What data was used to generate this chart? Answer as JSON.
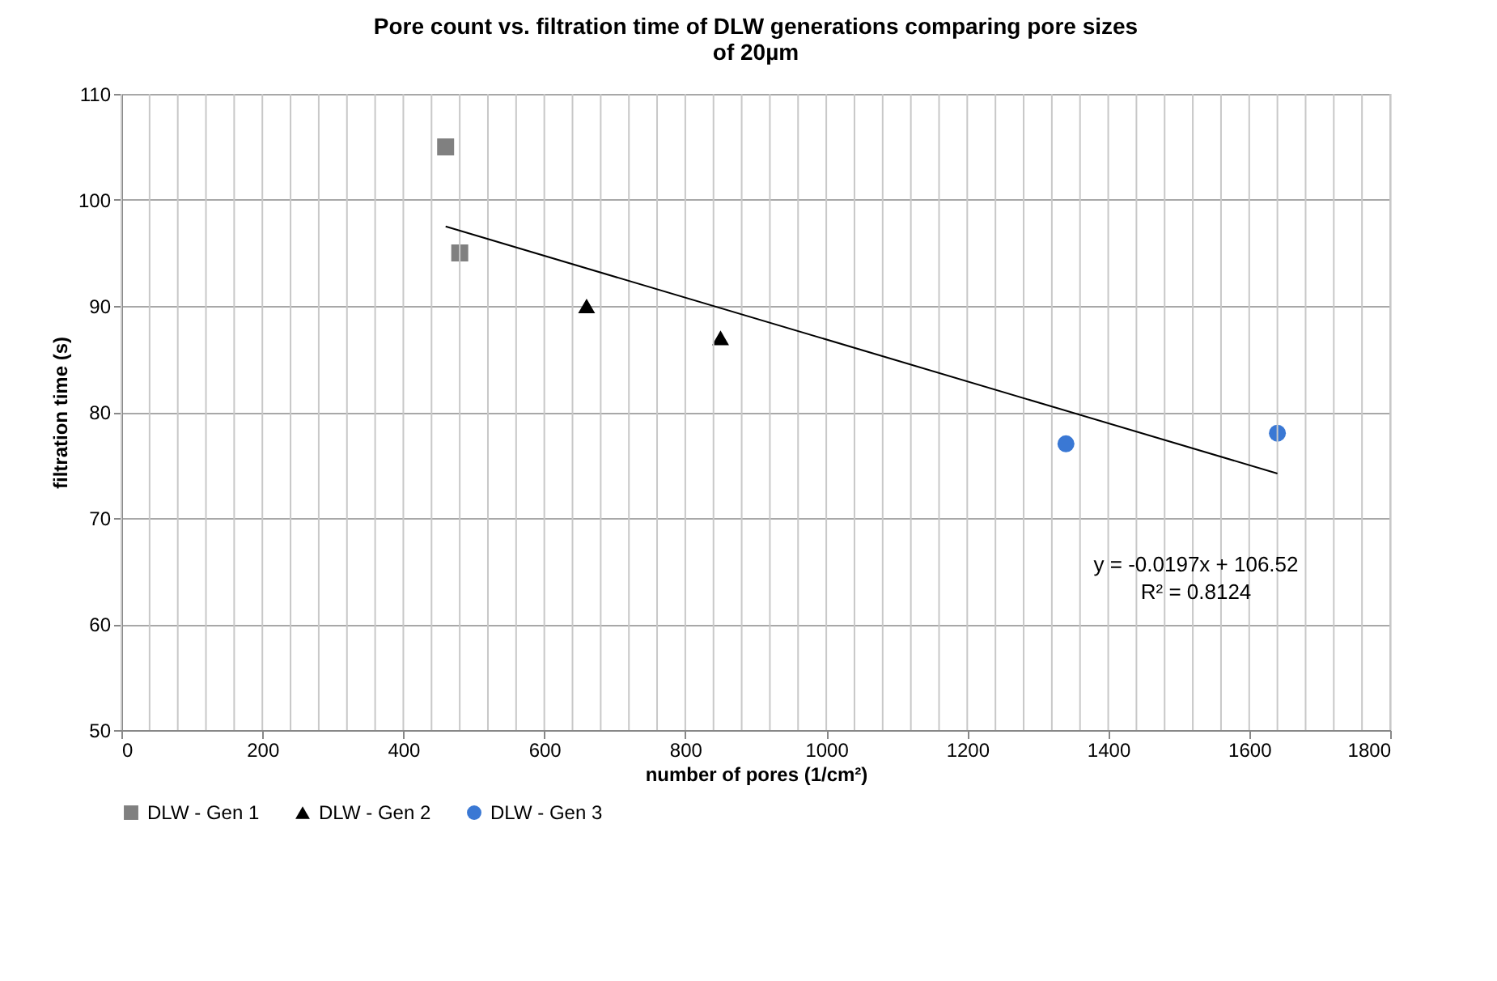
{
  "chart_data": {
    "type": "scatter",
    "title": [
      "Pore count vs. filtration time of DLW generations comparing pore sizes",
      "of  20µm"
    ],
    "xlabel": "number of pores (1/cm²)",
    "ylabel": "filtration time (s)",
    "xlim": [
      0,
      1800
    ],
    "ylim": [
      50,
      110
    ],
    "yticks": [
      50,
      60,
      70,
      80,
      90,
      100,
      110
    ],
    "xticks": [
      0,
      {
        "value": 40,
        "label": null
      },
      {
        "value": 80,
        "label": null
      },
      {
        "value": 120,
        "label": null
      },
      {
        "value": 160,
        "label": null
      },
      200,
      {
        "value": 240,
        "label": null
      },
      {
        "value": 280,
        "label": null
      },
      {
        "value": 320,
        "label": null
      },
      {
        "value": 360,
        "label": null
      },
      400,
      {
        "value": 440,
        "label": null
      },
      {
        "value": 480,
        "label": null
      },
      {
        "value": 520,
        "label": null
      },
      {
        "value": 560,
        "label": null
      },
      600,
      {
        "value": 640,
        "label": null
      },
      {
        "value": 680,
        "label": null
      },
      {
        "value": 720,
        "label": null
      },
      {
        "value": 760,
        "label": null
      },
      800,
      {
        "value": 840,
        "label": null
      },
      {
        "value": 880,
        "label": null
      },
      {
        "value": 920,
        "label": null
      },
      {
        "value": 960,
        "label": null
      },
      1000,
      {
        "value": 1040,
        "label": null
      },
      {
        "value": 1080,
        "label": null
      },
      {
        "value": 1120,
        "label": null
      },
      {
        "value": 1160,
        "label": null
      },
      1200,
      {
        "value": 1240,
        "label": null
      },
      {
        "value": 1280,
        "label": null
      },
      {
        "value": 1320,
        "label": null
      },
      {
        "value": 1360,
        "label": null
      },
      1400,
      {
        "value": 1440,
        "label": null
      },
      {
        "value": 1480,
        "label": null
      },
      {
        "value": 1520,
        "label": null
      },
      {
        "value": 1560,
        "label": null
      },
      1600,
      {
        "value": 1640,
        "label": null
      },
      {
        "value": 1680,
        "label": null
      },
      {
        "value": 1720,
        "label": null
      },
      {
        "value": 1760,
        "label": null
      },
      1800
    ],
    "grid": true,
    "legend": "bottom",
    "series": [
      {
        "name": "DLW - Gen 1",
        "color": "#808080",
        "marker": "square",
        "x": [
          460,
          480
        ],
        "values": [
          105,
          95
        ]
      },
      {
        "name": "DLW - Gen 2",
        "color": "#000000",
        "marker": "triangle",
        "x": [
          660,
          850
        ],
        "values": [
          90,
          87
        ]
      },
      {
        "name": "DLW - Gen 3",
        "color": "#3a78d4",
        "marker": "circle",
        "x": [
          1340,
          1640
        ],
        "values": [
          77,
          78
        ]
      },
      {
        "type": "line",
        "color": "#000000",
        "marker": "none",
        "line_style": "solid",
        "x": [
          460,
          1640
        ],
        "values": [
          97.5,
          74.2
        ]
      }
    ],
    "annotations": [
      "y = -0.0197x + 106.52",
      "R² = 0.8124"
    ]
  }
}
